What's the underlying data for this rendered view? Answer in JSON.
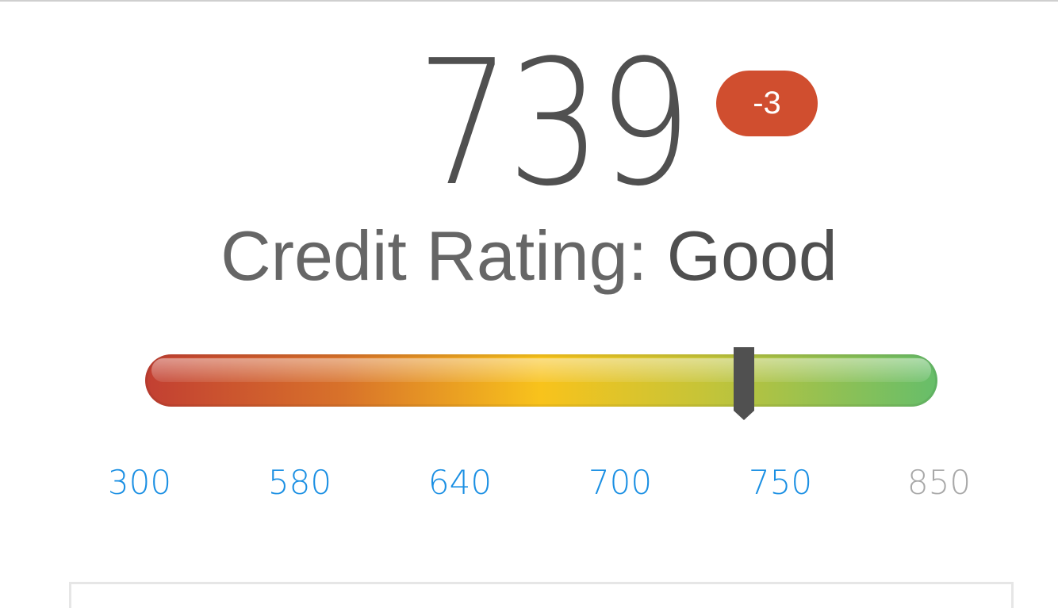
{
  "score": {
    "value": "739",
    "change": "-3",
    "change_color": "#d04e2f"
  },
  "rating": {
    "label": "Credit Rating:",
    "value": "Good"
  },
  "scale": {
    "min": 300,
    "max": 850,
    "current": 739,
    "ticks": [
      "300",
      "580",
      "640",
      "700",
      "750",
      "850"
    ],
    "tick_color": "#1a8fe3",
    "gradient": [
      "#c23f32",
      "#d8722a",
      "#f8c31c",
      "#c7c437",
      "#66be6a"
    ]
  }
}
